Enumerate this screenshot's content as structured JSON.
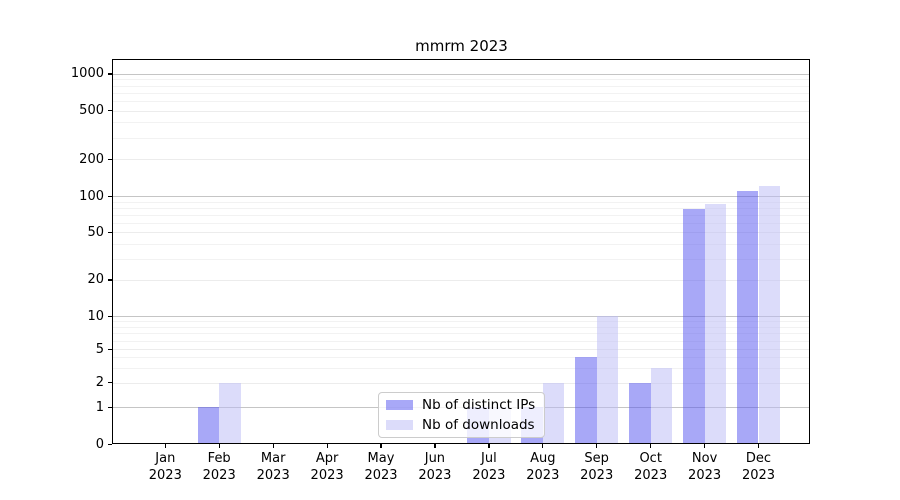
{
  "chart_data": {
    "type": "bar",
    "title": "mmrm 2023",
    "categories": [
      "Jan 2023",
      "Feb 2023",
      "Mar 2023",
      "Apr 2023",
      "May 2023",
      "Jun 2023",
      "Jul 2023",
      "Aug 2023",
      "Sep 2023",
      "Oct 2023",
      "Nov 2023",
      "Dec 2023"
    ],
    "series": [
      {
        "name": "Nb of distinct IPs",
        "color": "rgba(81,81,240,0.5)",
        "values": [
          0,
          1,
          0,
          0,
          0,
          0,
          1,
          1,
          4,
          2,
          78,
          110
        ]
      },
      {
        "name": "Nb of downloads",
        "color": "rgba(185,185,245,0.5)",
        "values": [
          0,
          2,
          0,
          0,
          0,
          0,
          1,
          2,
          10,
          3,
          86,
          120
        ]
      }
    ],
    "yscale": "symlog",
    "yticks": [
      0,
      1,
      2,
      5,
      10,
      20,
      50,
      100,
      200,
      500,
      1000
    ],
    "ylim": [
      0,
      1500
    ],
    "grid": true,
    "legend_position": "lower center",
    "colors": {
      "bar_distinct_ips": "rgba(81,81,240,0.5)",
      "bar_downloads": "rgba(185,185,245,0.5)",
      "grid_decade": "#c5c5c5",
      "grid_major": "#ececec",
      "grid_minor": "#f2f2f2"
    }
  }
}
